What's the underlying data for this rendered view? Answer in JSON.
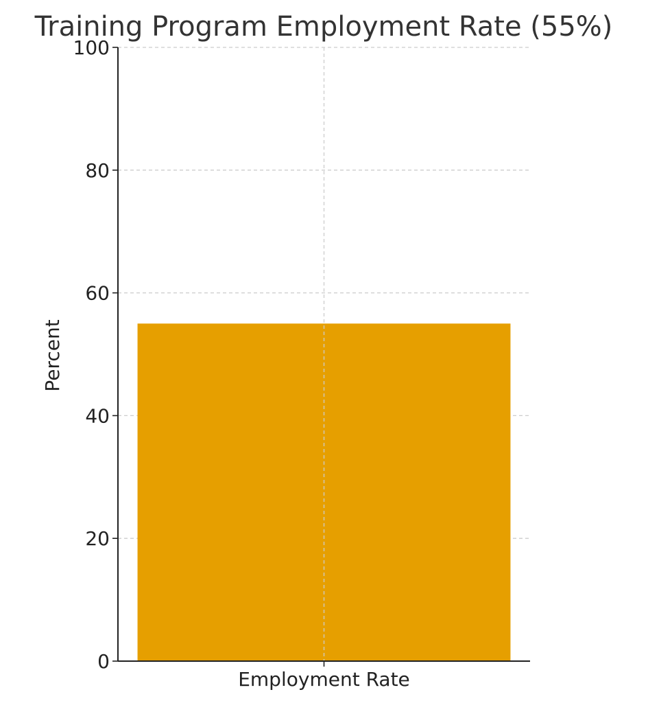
{
  "chart_data": {
    "type": "bar",
    "title": "Training Program Employment Rate (55%)",
    "categories": [
      "Employment Rate"
    ],
    "values": [
      55
    ],
    "xlabel": "",
    "ylabel": "Percent",
    "ylim": [
      0,
      100
    ],
    "yticks": [
      "0",
      "20",
      "40",
      "60",
      "80",
      "100"
    ],
    "grid": true,
    "legend": "none",
    "colors": {
      "bar": "#E69F00",
      "grid": "#cccccc",
      "axis": "#222222",
      "title": "#333333",
      "text": "#222222"
    }
  }
}
